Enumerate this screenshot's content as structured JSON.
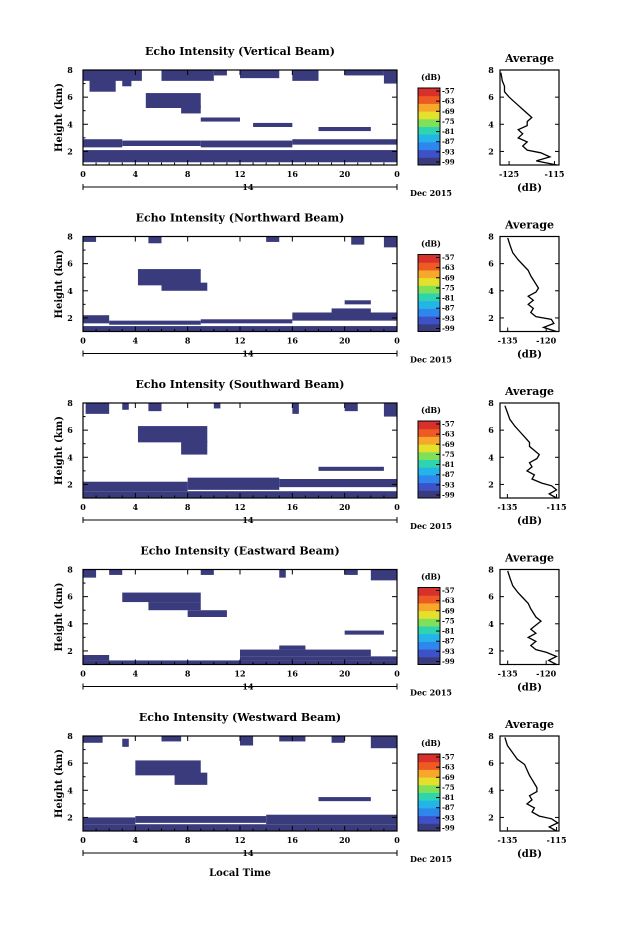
{
  "chart_data": {
    "type": "heatmap",
    "xlabel": "Local Time",
    "date_label": "Dec 2015",
    "x_sub_label": "14",
    "xticks": [
      "0",
      "4",
      "8",
      "12",
      "16",
      "20",
      "0"
    ],
    "xlim": [
      0,
      24
    ],
    "ylim": [
      1,
      8
    ],
    "yticks": [
      "2",
      "4",
      "6",
      "8"
    ],
    "ylabel": "Height (km)",
    "colorbar": {
      "unit": "(dB)",
      "ticks": [
        "-57",
        "-63",
        "-69",
        "-75",
        "-81",
        "-87",
        "-93",
        "-99"
      ],
      "colors": [
        "#3a3b7c",
        "#3d52c8",
        "#2f86ec",
        "#25b4e8",
        "#2ed4b0",
        "#7fe05a",
        "#e5e02c",
        "#f7a72a",
        "#ef5a24",
        "#d8302a"
      ]
    },
    "panel_fill": "#3a3b7c",
    "panels": [
      {
        "title": "Echo Intensity (Vertical Beam)",
        "avg": {
          "title": "Average",
          "xticks": [
            "-125",
            "-115"
          ],
          "xlim": [
            -127,
            -114
          ],
          "xlabel": "(dB)",
          "profile": [
            [
              -114.5,
              1.0
            ],
            [
              -119,
              1.3
            ],
            [
              -116,
              1.6
            ],
            [
              -118,
              1.9
            ],
            [
              -121,
              2.1
            ],
            [
              -122,
              2.4
            ],
            [
              -121,
              2.7
            ],
            [
              -123,
              3.0
            ],
            [
              -122,
              3.3
            ],
            [
              -123,
              3.6
            ],
            [
              -121,
              3.9
            ],
            [
              -121,
              4.2
            ],
            [
              -120,
              4.5
            ],
            [
              -121,
              4.8
            ],
            [
              -122,
              5.1
            ],
            [
              -123,
              5.4
            ],
            [
              -124,
              5.7
            ],
            [
              -125,
              6.0
            ],
            [
              -126,
              6.4
            ],
            [
              -126,
              6.8
            ],
            [
              -126.5,
              7.2
            ],
            [
              -126.8,
              7.8
            ]
          ]
        },
        "cells": [
          [
            0,
            1.2,
            24,
            2.1
          ],
          [
            0,
            2.3,
            3,
            2.9
          ],
          [
            3,
            2.4,
            9,
            2.8
          ],
          [
            9,
            2.3,
            16,
            2.8
          ],
          [
            16,
            2.5,
            24,
            2.9
          ],
          [
            4.8,
            5.2,
            9,
            6.3
          ],
          [
            7.5,
            4.8,
            9,
            5.4
          ],
          [
            0,
            7.2,
            4.5,
            8.0
          ],
          [
            0.5,
            6.4,
            2.5,
            7.3
          ],
          [
            3,
            6.8,
            3.7,
            7.4
          ],
          [
            6,
            7.2,
            10,
            8.0
          ],
          [
            10,
            7.6,
            11,
            8.0
          ],
          [
            12,
            7.4,
            15,
            8.0
          ],
          [
            16,
            7.2,
            18,
            8.0
          ],
          [
            20,
            7.6,
            23,
            8.0
          ],
          [
            23,
            7.0,
            24,
            8.0
          ],
          [
            18,
            3.5,
            22,
            3.8
          ],
          [
            13,
            3.8,
            16,
            4.1
          ],
          [
            9,
            4.2,
            12,
            4.5
          ]
        ]
      },
      {
        "title": "Echo Intensity (Northward Beam)",
        "avg": {
          "title": "Average",
          "xticks": [
            "-135",
            "-120"
          ],
          "xlim": [
            -138,
            -115
          ],
          "xlabel": "(dB)",
          "profile": [
            [
              -116,
              1.0
            ],
            [
              -121,
              1.3
            ],
            [
              -117,
              1.6
            ],
            [
              -118,
              1.9
            ],
            [
              -124,
              2.1
            ],
            [
              -126,
              2.4
            ],
            [
              -125,
              2.7
            ],
            [
              -127,
              3.0
            ],
            [
              -125,
              3.3
            ],
            [
              -127,
              3.6
            ],
            [
              -124,
              3.9
            ],
            [
              -123,
              4.2
            ],
            [
              -124,
              4.5
            ],
            [
              -125,
              4.8
            ],
            [
              -126,
              5.1
            ],
            [
              -127,
              5.5
            ],
            [
              -129,
              5.9
            ],
            [
              -131,
              6.3
            ],
            [
              -133,
              6.8
            ],
            [
              -134,
              7.3
            ],
            [
              -135,
              7.9
            ]
          ]
        },
        "cells": [
          [
            0,
            1.0,
            24,
            1.4
          ],
          [
            0,
            1.6,
            2,
            2.2
          ],
          [
            2,
            1.5,
            9,
            1.8
          ],
          [
            9,
            1.6,
            16,
            1.9
          ],
          [
            16,
            1.8,
            24,
            2.4
          ],
          [
            19,
            2.4,
            22,
            2.7
          ],
          [
            4.2,
            4.4,
            9,
            5.6
          ],
          [
            6,
            4.0,
            9.5,
            4.6
          ],
          [
            0,
            7.6,
            1,
            8.0
          ],
          [
            5,
            7.5,
            6,
            8.0
          ],
          [
            14,
            7.6,
            15,
            8.0
          ],
          [
            20.5,
            7.4,
            21.5,
            8.0
          ],
          [
            23,
            7.2,
            24,
            8.0
          ],
          [
            20,
            3.0,
            22,
            3.3
          ]
        ]
      },
      {
        "title": "Echo Intensity (Southward Beam)",
        "avg": {
          "title": "Average",
          "xticks": [
            "-135",
            "-115"
          ],
          "xlim": [
            -138,
            -114
          ],
          "xlabel": "(dB)",
          "profile": [
            [
              -115,
              1.0
            ],
            [
              -118,
              1.3
            ],
            [
              -115,
              1.6
            ],
            [
              -117,
              1.9
            ],
            [
              -121,
              2.1
            ],
            [
              -125,
              2.4
            ],
            [
              -124,
              2.7
            ],
            [
              -127,
              3.0
            ],
            [
              -125,
              3.3
            ],
            [
              -126,
              3.6
            ],
            [
              -123,
              3.9
            ],
            [
              -122,
              4.2
            ],
            [
              -124,
              4.5
            ],
            [
              -126,
              4.8
            ],
            [
              -126,
              5.1
            ],
            [
              -128,
              5.5
            ],
            [
              -130,
              5.9
            ],
            [
              -132,
              6.3
            ],
            [
              -134,
              6.8
            ],
            [
              -135,
              7.3
            ],
            [
              -136,
              7.8
            ]
          ]
        },
        "cells": [
          [
            0,
            1.0,
            24,
            1.5
          ],
          [
            0,
            1.5,
            8,
            2.2
          ],
          [
            8,
            1.6,
            15,
            2.5
          ],
          [
            15,
            1.8,
            24,
            2.4
          ],
          [
            4.2,
            5.1,
            9.5,
            6.3
          ],
          [
            7.5,
            4.2,
            9.5,
            5.2
          ],
          [
            0.2,
            7.2,
            2,
            8.0
          ],
          [
            3,
            7.5,
            3.5,
            8.0
          ],
          [
            5,
            7.4,
            6,
            8.0
          ],
          [
            10,
            7.6,
            10.5,
            8.0
          ],
          [
            16,
            7.2,
            16.5,
            8.0
          ],
          [
            20,
            7.4,
            21,
            8.0
          ],
          [
            23,
            7.0,
            24,
            8.0
          ],
          [
            18,
            3.0,
            23,
            3.3
          ]
        ]
      },
      {
        "title": "Echo Intensity (Eastward Beam)",
        "avg": {
          "title": "Average",
          "xticks": [
            "-135",
            "-120"
          ],
          "xlim": [
            -138,
            -115
          ],
          "xlabel": "(dB)",
          "profile": [
            [
              -116,
              1.0
            ],
            [
              -119,
              1.3
            ],
            [
              -116,
              1.6
            ],
            [
              -120,
              1.9
            ],
            [
              -124,
              2.1
            ],
            [
              -126,
              2.4
            ],
            [
              -124,
              2.7
            ],
            [
              -127,
              3.0
            ],
            [
              -124,
              3.3
            ],
            [
              -126,
              3.6
            ],
            [
              -124,
              3.9
            ],
            [
              -122,
              4.2
            ],
            [
              -124,
              4.5
            ],
            [
              -125,
              4.8
            ],
            [
              -126,
              5.1
            ],
            [
              -127,
              5.5
            ],
            [
              -129,
              5.9
            ],
            [
              -131,
              6.3
            ],
            [
              -133,
              6.8
            ],
            [
              -134,
              7.3
            ],
            [
              -135,
              7.9
            ]
          ]
        },
        "cells": [
          [
            0,
            1.0,
            24,
            1.3
          ],
          [
            0,
            1.3,
            2,
            1.7
          ],
          [
            12,
            1.3,
            24,
            1.6
          ],
          [
            12,
            1.6,
            22,
            2.1
          ],
          [
            15,
            2.1,
            17,
            2.4
          ],
          [
            3,
            5.6,
            9,
            6.3
          ],
          [
            5,
            5.0,
            9,
            5.6
          ],
          [
            8,
            4.5,
            11,
            5.0
          ],
          [
            0,
            7.4,
            1,
            8.0
          ],
          [
            2,
            7.6,
            3,
            8.0
          ],
          [
            9,
            7.6,
            10,
            8.0
          ],
          [
            15,
            7.4,
            15.5,
            8.0
          ],
          [
            20,
            7.6,
            21,
            8.0
          ],
          [
            22,
            7.2,
            24,
            8.0
          ],
          [
            20,
            3.2,
            23,
            3.5
          ]
        ]
      },
      {
        "title": "Echo Intensity (Westward Beam)",
        "avg": {
          "title": "Average",
          "xticks": [
            "-135",
            "-115"
          ],
          "xlim": [
            -138,
            -114
          ],
          "xlabel": "(dB)",
          "profile": [
            [
              -115,
              1.0
            ],
            [
              -118,
              1.3
            ],
            [
              -114.5,
              1.6
            ],
            [
              -117,
              1.9
            ],
            [
              -122,
              2.1
            ],
            [
              -125,
              2.4
            ],
            [
              -124,
              2.7
            ],
            [
              -127,
              3.0
            ],
            [
              -125,
              3.3
            ],
            [
              -126,
              3.6
            ],
            [
              -123,
              3.9
            ],
            [
              -123,
              4.2
            ],
            [
              -124,
              4.5
            ],
            [
              -125,
              4.8
            ],
            [
              -126,
              5.1
            ],
            [
              -127,
              5.5
            ],
            [
              -128,
              5.9
            ],
            [
              -131,
              6.3
            ],
            [
              -133,
              6.8
            ],
            [
              -135,
              7.3
            ],
            [
              -136,
              7.9
            ]
          ]
        },
        "cells": [
          [
            0,
            1.0,
            24,
            1.5
          ],
          [
            0,
            1.5,
            4,
            2.0
          ],
          [
            4,
            1.6,
            14,
            2.1
          ],
          [
            14,
            1.5,
            24,
            2.2
          ],
          [
            4,
            5.1,
            9,
            6.2
          ],
          [
            7,
            4.4,
            9.5,
            5.3
          ],
          [
            0,
            7.5,
            1.5,
            8.0
          ],
          [
            3,
            7.2,
            3.5,
            7.8
          ],
          [
            6,
            7.6,
            7.5,
            8.0
          ],
          [
            12,
            7.3,
            13,
            8.0
          ],
          [
            15,
            7.6,
            17,
            8.0
          ],
          [
            19,
            7.5,
            20,
            8.0
          ],
          [
            22,
            7.1,
            24,
            8.0
          ],
          [
            18,
            3.2,
            22,
            3.5
          ]
        ]
      }
    ]
  }
}
